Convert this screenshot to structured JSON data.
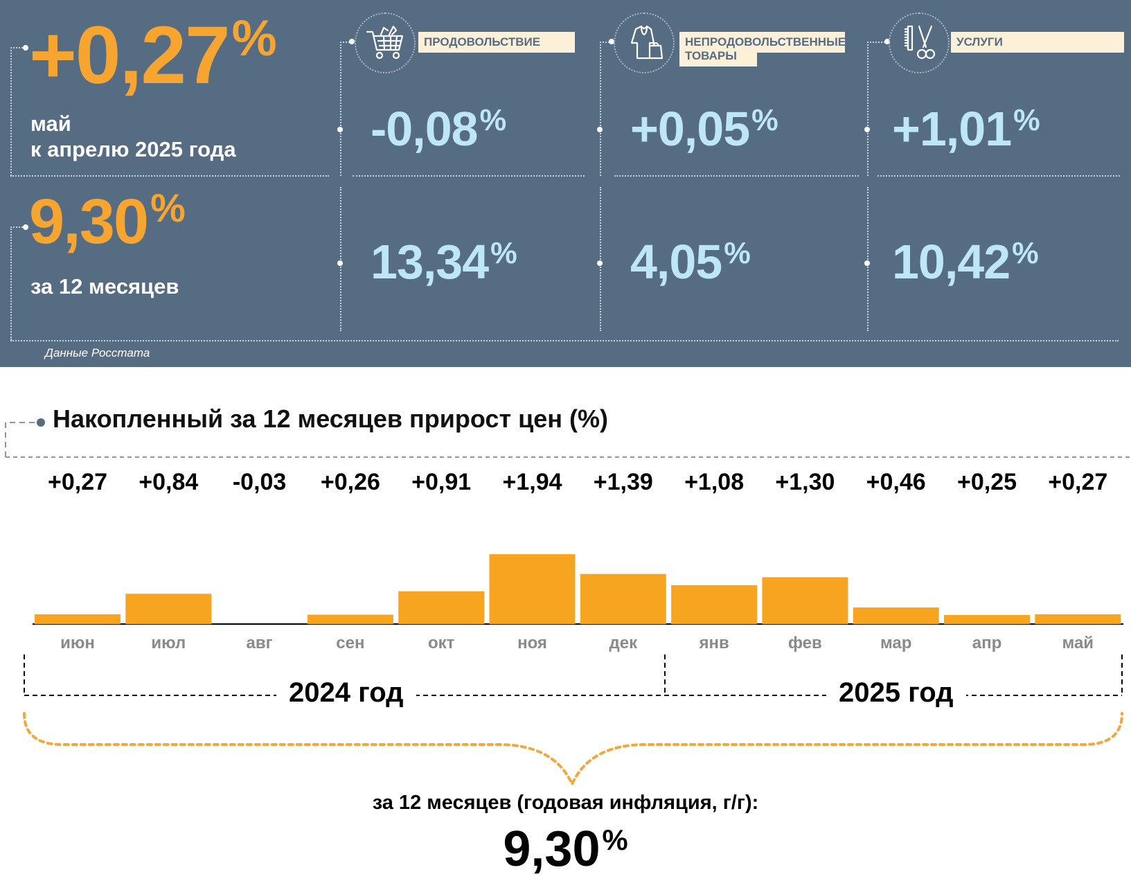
{
  "summary": {
    "monthly": {
      "value": "+0,27",
      "unit": "%",
      "caption_line1": "май",
      "caption_line2": "к апрелю 2025 года"
    },
    "annual": {
      "value": "9,30",
      "unit": "%",
      "caption": "за 12 месяцев"
    },
    "source": "Данные Росстата"
  },
  "categories": [
    {
      "label": "ПРОДОВОЛЬСТВИЕ",
      "label_line2": "",
      "icon": "shopping-cart-icon",
      "monthly": "-0,08",
      "annual": "13,34",
      "unit": "%"
    },
    {
      "label": "НЕПРОДОВОЛЬСТВЕННЫЕ",
      "label_line2": "ТОВАРЫ",
      "icon": "clothing-icon",
      "monthly": "+0,05",
      "annual": "4,05",
      "unit": "%"
    },
    {
      "label": "УСЛУГИ",
      "label_line2": "",
      "icon": "scissors-comb-icon",
      "monthly": "+1,01",
      "annual": "10,42",
      "unit": "%"
    }
  ],
  "chart_data": {
    "type": "bar",
    "title": "Накопленный за 12 месяцев прирост цен (%)",
    "categories": [
      "июн",
      "июл",
      "авг",
      "сен",
      "окт",
      "ноя",
      "дек",
      "янв",
      "фев",
      "мар",
      "апр",
      "май"
    ],
    "values": [
      0.27,
      0.84,
      -0.03,
      0.26,
      0.91,
      1.94,
      1.39,
      1.08,
      1.3,
      0.46,
      0.25,
      0.27
    ],
    "value_labels": [
      "+0,27",
      "+0,84",
      "-0,03",
      "+0,26",
      "+0,91",
      "+1,94",
      "+1,39",
      "+1,08",
      "+1,30",
      "+0,46",
      "+0,25",
      "+0,27"
    ],
    "years": [
      "2024 год",
      "2025 год"
    ],
    "grid": false,
    "bar_color": "#f7a521"
  },
  "annual_summary": {
    "caption": "за 12 месяцев (годовая инфляция, г/г):",
    "value": "9,30",
    "unit": "%"
  }
}
